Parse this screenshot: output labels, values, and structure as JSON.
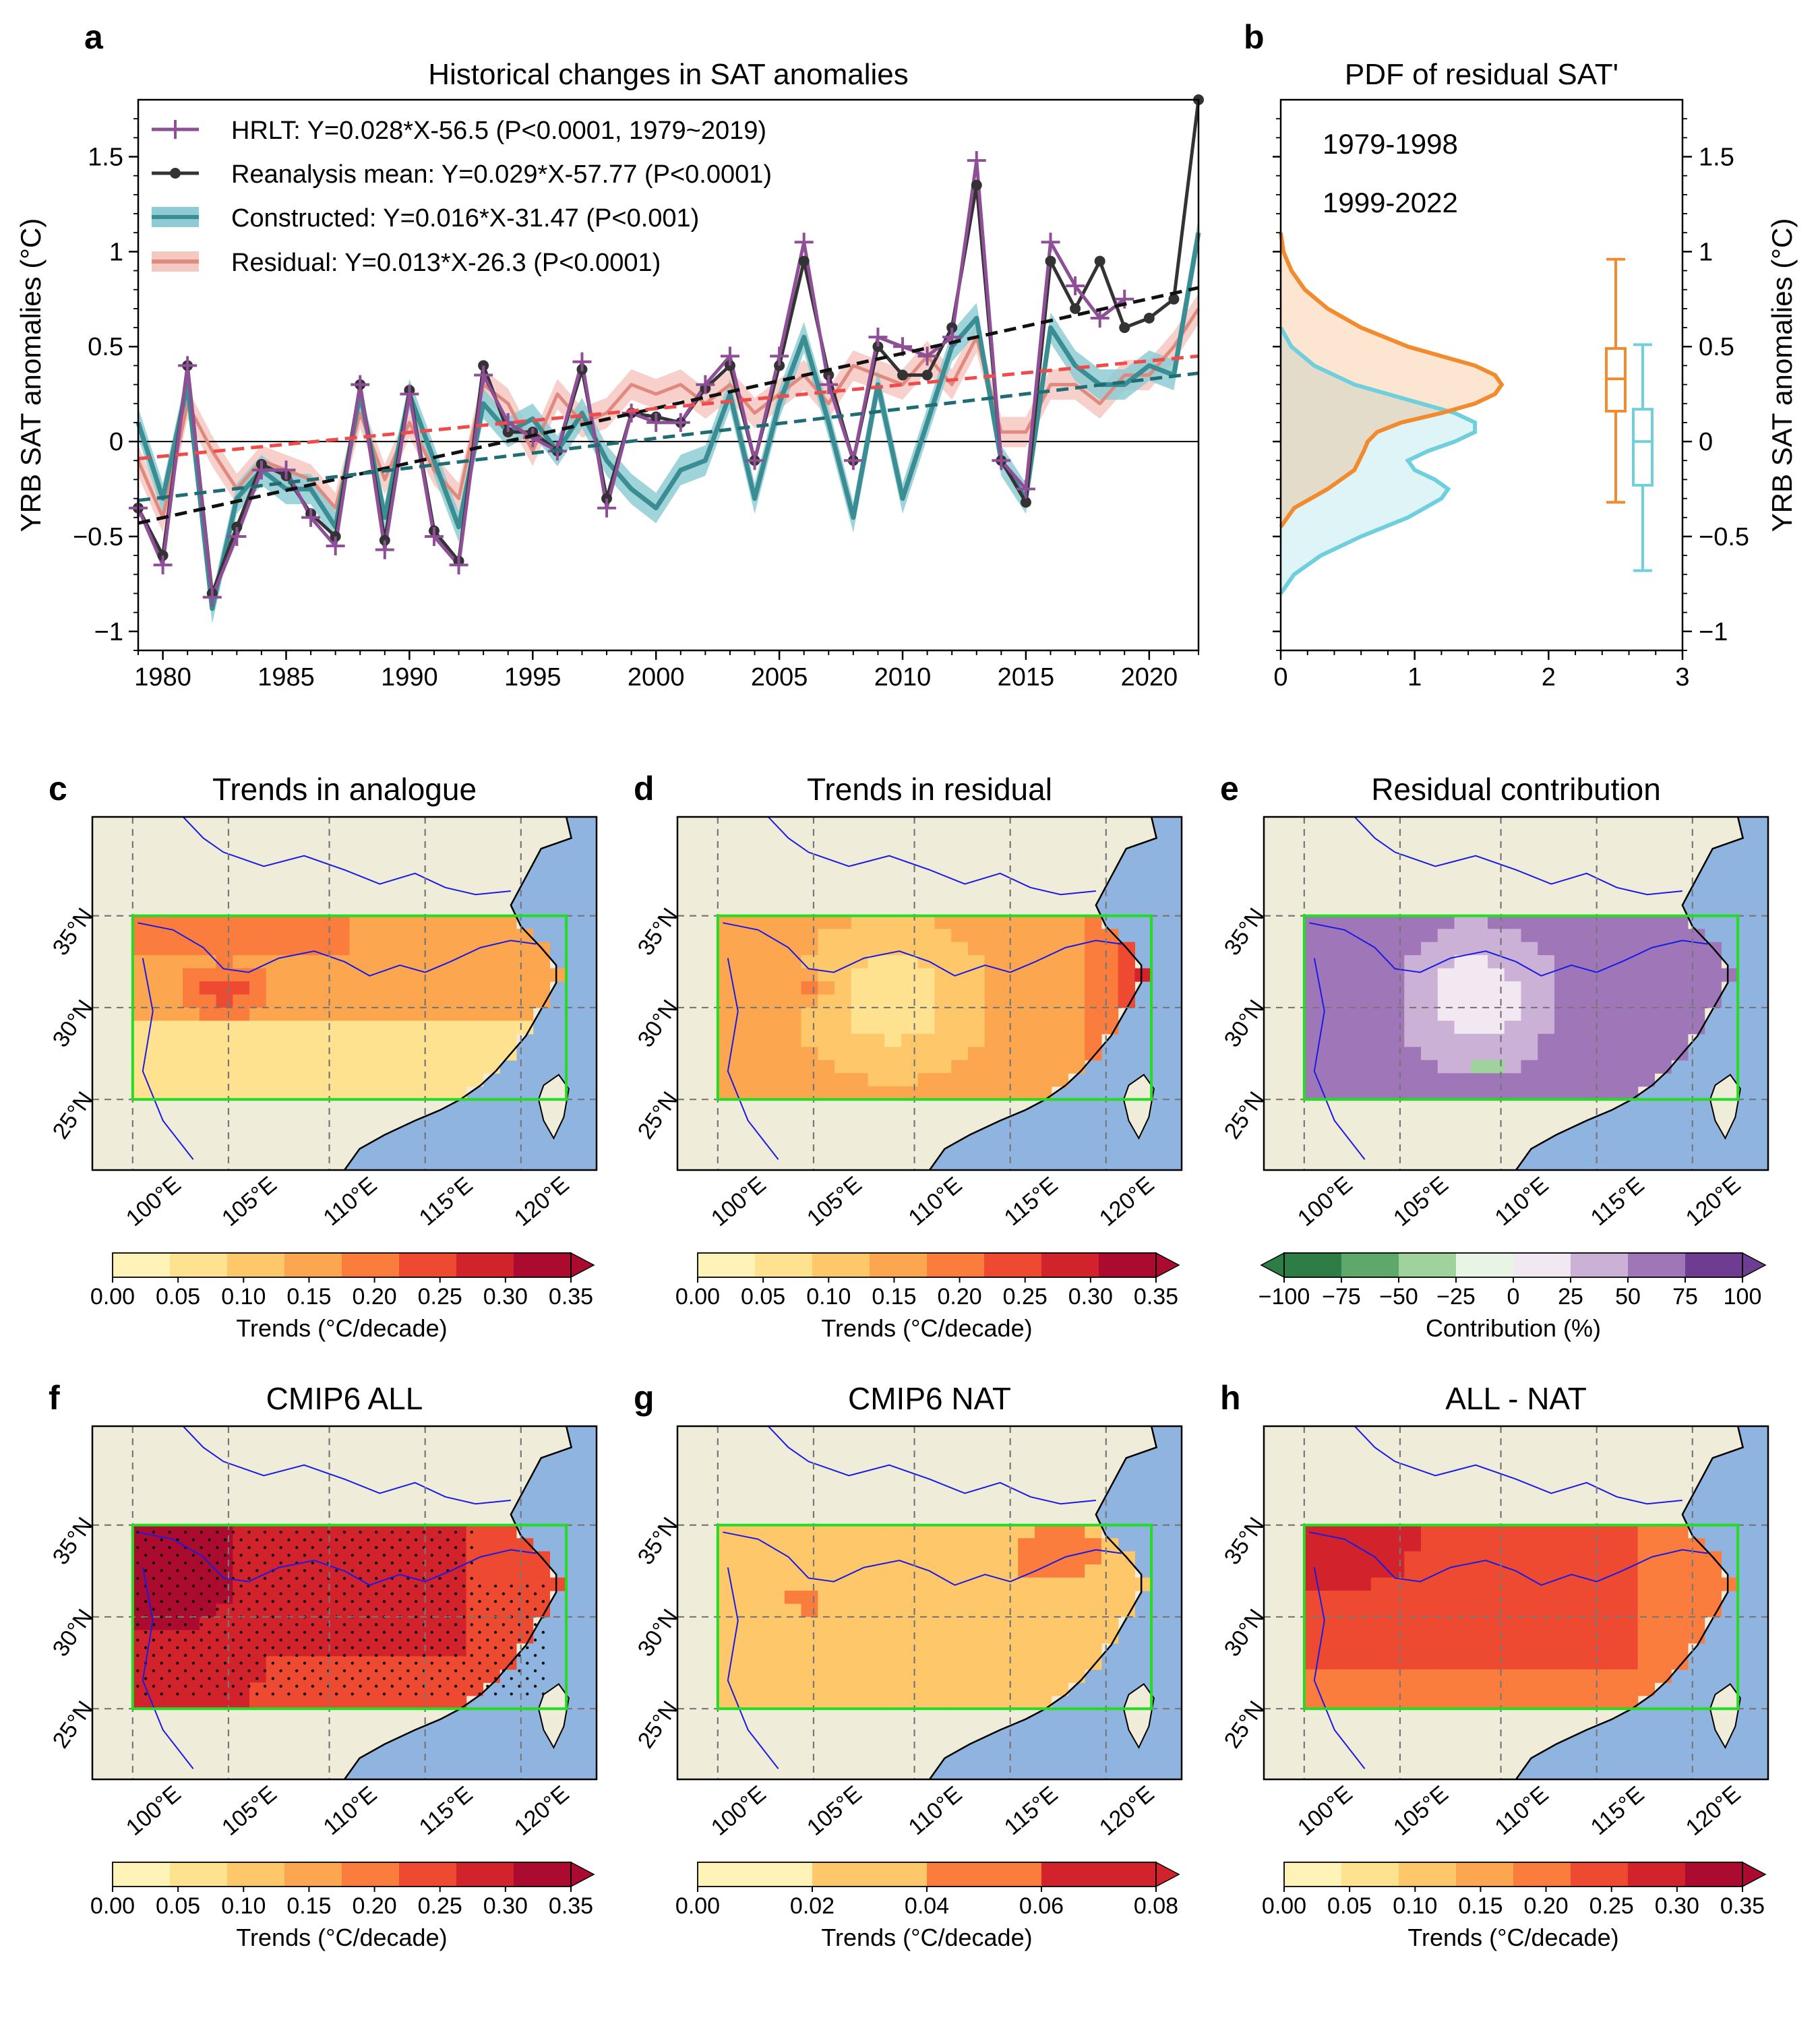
{
  "chart_data": [
    {
      "panel": "a",
      "type": "line",
      "title": "Historical changes in SAT anomalies",
      "ylabel": "YRB SAT anomalies (°C)",
      "xlim": [
        1979,
        2022
      ],
      "ylim": [
        -1.1,
        1.8
      ],
      "xticks": [
        1980,
        1985,
        1990,
        1995,
        2000,
        2005,
        2010,
        2015,
        2020
      ],
      "yticks": [
        -1,
        -0.5,
        0,
        0.5,
        1,
        1.5
      ],
      "ytick_labels": [
        "−1",
        "−0.5",
        "0",
        "0.5",
        "1",
        "1.5"
      ],
      "legend_position": "top-left",
      "series": [
        {
          "name": "HRLT: Y=0.028*X-56.5 (P<0.0001, 1979~2019)",
          "color": "#8f4f97",
          "marker": "plus",
          "x": [
            1979,
            1980,
            1981,
            1982,
            1983,
            1984,
            1985,
            1986,
            1987,
            1988,
            1989,
            1990,
            1991,
            1992,
            1993,
            1994,
            1995,
            1996,
            1997,
            1998,
            1999,
            2000,
            2001,
            2002,
            2003,
            2004,
            2005,
            2006,
            2007,
            2008,
            2009,
            2010,
            2011,
            2012,
            2013,
            2014,
            2015,
            2016,
            2017,
            2018,
            2019
          ],
          "values": [
            -0.35,
            -0.65,
            0.4,
            -0.82,
            -0.5,
            -0.15,
            -0.15,
            -0.4,
            -0.55,
            0.3,
            -0.57,
            0.25,
            -0.5,
            -0.65,
            0.35,
            0.1,
            0.02,
            -0.05,
            0.42,
            -0.35,
            0.15,
            0.1,
            0.1,
            0.3,
            0.45,
            -0.1,
            0.45,
            1.05,
            0.3,
            -0.1,
            0.55,
            0.5,
            0.45,
            0.55,
            1.48,
            -0.1,
            -0.25,
            1.05,
            0.82,
            0.65,
            0.75
          ]
        },
        {
          "name": "Reanalysis mean: Y=0.029*X-57.77 (P<0.0001)",
          "color": "#333333",
          "marker": "dot",
          "x": [
            1979,
            1980,
            1981,
            1982,
            1983,
            1984,
            1985,
            1986,
            1987,
            1988,
            1989,
            1990,
            1991,
            1992,
            1993,
            1994,
            1995,
            1996,
            1997,
            1998,
            1999,
            2000,
            2001,
            2002,
            2003,
            2004,
            2005,
            2006,
            2007,
            2008,
            2009,
            2010,
            2011,
            2012,
            2013,
            2014,
            2015,
            2016,
            2017,
            2018,
            2019,
            2020,
            2021,
            2022
          ],
          "values": [
            -0.35,
            -0.6,
            0.4,
            -0.8,
            -0.45,
            -0.12,
            -0.18,
            -0.38,
            -0.5,
            0.3,
            -0.52,
            0.27,
            -0.47,
            -0.63,
            0.4,
            0.05,
            0.05,
            -0.05,
            0.38,
            -0.3,
            0.15,
            0.13,
            0.1,
            0.28,
            0.4,
            -0.1,
            0.4,
            0.95,
            0.35,
            -0.1,
            0.5,
            0.35,
            0.35,
            0.6,
            1.35,
            -0.1,
            -0.32,
            0.95,
            0.7,
            0.95,
            0.6,
            0.65,
            0.75,
            1.8
          ]
        },
        {
          "name": "Constructed: Y=0.016*X-31.47 (P<0.001)",
          "color": "#3a8d93",
          "band_color": "#8dccd4",
          "x": [
            1979,
            1980,
            1981,
            1982,
            1983,
            1984,
            1985,
            1986,
            1987,
            1988,
            1989,
            1990,
            1991,
            1992,
            1993,
            1994,
            1995,
            1996,
            1997,
            1998,
            1999,
            2000,
            2001,
            2002,
            2003,
            2004,
            2005,
            2006,
            2007,
            2008,
            2009,
            2010,
            2011,
            2012,
            2013,
            2014,
            2015,
            2016,
            2017,
            2018,
            2019,
            2020,
            2021,
            2022
          ],
          "values": [
            0.1,
            -0.3,
            0.3,
            -0.88,
            -0.3,
            -0.15,
            -0.25,
            -0.25,
            -0.45,
            0.25,
            -0.4,
            0.25,
            -0.1,
            -0.45,
            0.2,
            0.05,
            0.12,
            -0.05,
            0.15,
            -0.1,
            -0.25,
            -0.35,
            -0.15,
            -0.1,
            0.25,
            -0.3,
            0.2,
            0.55,
            0.1,
            -0.4,
            0.3,
            -0.3,
            0.1,
            0.5,
            0.65,
            -0.1,
            -0.3,
            0.6,
            0.4,
            0.3,
            0.3,
            0.4,
            0.35,
            1.1
          ]
        },
        {
          "name": "Residual: Y=0.013*X-26.3 (P<0.0001)",
          "color": "#e08a7f",
          "band_color": "#f6c8c2",
          "x": [
            1979,
            1980,
            1981,
            1982,
            1983,
            1984,
            1985,
            1986,
            1987,
            1988,
            1989,
            1990,
            1991,
            1992,
            1993,
            1994,
            1995,
            1996,
            1997,
            1998,
            1999,
            2000,
            2001,
            2002,
            2003,
            2004,
            2005,
            2006,
            2007,
            2008,
            2009,
            2010,
            2011,
            2012,
            2013,
            2014,
            2015,
            2016,
            2017,
            2018,
            2019,
            2020,
            2021,
            2022
          ],
          "values": [
            -0.1,
            -0.4,
            0.2,
            -0.05,
            -0.25,
            -0.1,
            -0.15,
            -0.2,
            -0.35,
            0.15,
            -0.2,
            0.1,
            -0.15,
            -0.3,
            0.3,
            0.2,
            -0.05,
            0.25,
            0.1,
            0.15,
            0.3,
            0.25,
            0.3,
            0.2,
            0.3,
            0.15,
            0.25,
            0.35,
            0.2,
            0.4,
            0.35,
            0.3,
            0.45,
            0.3,
            0.55,
            0.05,
            0.05,
            0.3,
            0.3,
            0.2,
            0.35,
            0.35,
            0.5,
            0.7
          ]
        }
      ],
      "trend_lines": [
        {
          "color": "#111111",
          "from": [
            1979,
            -0.43
          ],
          "to": [
            2022,
            0.81
          ]
        },
        {
          "color": "#ef4b4b",
          "from": [
            1979,
            -0.09
          ],
          "to": [
            2022,
            0.45
          ]
        },
        {
          "color": "#1f6d72",
          "from": [
            1979,
            -0.31
          ],
          "to": [
            2022,
            0.36
          ]
        }
      ],
      "zero_line": 0
    },
    {
      "panel": "b",
      "type": "area",
      "title": "PDF of residual SAT'",
      "ylabel": "YRB SAT anomalies (°C)",
      "xlim": [
        0,
        3
      ],
      "xticks": [
        0,
        1,
        2,
        3
      ],
      "ylim": [
        -1.1,
        1.8
      ],
      "series": [
        {
          "name": "1979-1998",
          "color": "#6fcfdc",
          "pdf_y": [
            -0.8,
            -0.7,
            -0.6,
            -0.5,
            -0.4,
            -0.3,
            -0.25,
            -0.2,
            -0.15,
            -0.1,
            -0.05,
            0,
            0.05,
            0.1,
            0.15,
            0.2,
            0.3,
            0.4,
            0.5,
            0.6
          ],
          "pdf_density": [
            0.0,
            0.1,
            0.3,
            0.6,
            0.95,
            1.2,
            1.25,
            1.15,
            1.0,
            0.95,
            1.1,
            1.3,
            1.45,
            1.45,
            1.3,
            1.05,
            0.55,
            0.25,
            0.08,
            0.0
          ],
          "box": {
            "whisker_low": -0.68,
            "q1": -0.23,
            "median": 0.0,
            "q3": 0.17,
            "whisker_high": 0.51
          }
        },
        {
          "name": "1999-2022",
          "color": "#f28a2e",
          "pdf_y": [
            -0.45,
            -0.35,
            -0.25,
            -0.15,
            -0.05,
            0.0,
            0.05,
            0.1,
            0.15,
            0.2,
            0.25,
            0.3,
            0.35,
            0.4,
            0.45,
            0.5,
            0.6,
            0.7,
            0.8,
            0.9,
            1.0,
            1.1
          ],
          "pdf_density": [
            0.0,
            0.1,
            0.35,
            0.55,
            0.62,
            0.65,
            0.72,
            0.9,
            1.2,
            1.45,
            1.6,
            1.65,
            1.6,
            1.45,
            1.2,
            0.95,
            0.6,
            0.35,
            0.18,
            0.08,
            0.02,
            0.0
          ],
          "box": {
            "whisker_low": -0.32,
            "q1": 0.16,
            "median": 0.33,
            "q3": 0.49,
            "whisker_high": 0.96
          }
        }
      ]
    }
  ],
  "maps": {
    "lon_labels": [
      "100°E",
      "105°E",
      "110°E",
      "115°E",
      "120°E"
    ],
    "lat_labels": [
      "35°N",
      "30°N",
      "25°N"
    ],
    "panels": [
      {
        "letter": "c",
        "title": "Trends in analogue",
        "cbar_label": "Trends (°C/decade)",
        "cbar_ticks": [
          "0.00",
          "0.05",
          "0.10",
          "0.15",
          "0.20",
          "0.25",
          "0.30",
          "0.35"
        ],
        "cbar_colors": [
          "#fff3b8",
          "#fee28f",
          "#fdc76a",
          "#fca64f",
          "#fb7d3e",
          "#ee4a32",
          "#d2222c",
          "#ab0b2e"
        ],
        "scheme": "analogue",
        "extend": "max",
        "stippled": false
      },
      {
        "letter": "d",
        "title": "Trends in residual",
        "cbar_label": "Trends (°C/decade)",
        "cbar_ticks": [
          "0.00",
          "0.05",
          "0.10",
          "0.15",
          "0.20",
          "0.25",
          "0.30",
          "0.35"
        ],
        "cbar_colors": [
          "#fff3b8",
          "#fee28f",
          "#fdc76a",
          "#fca64f",
          "#fb7d3e",
          "#ee4a32",
          "#d2222c",
          "#ab0b2e"
        ],
        "scheme": "residual",
        "extend": "max",
        "stippled": false
      },
      {
        "letter": "e",
        "title": "Residual contribution",
        "cbar_label": "Contribution (%)",
        "cbar_ticks": [
          "−100",
          "−75",
          "−50",
          "−25",
          "0",
          "25",
          "50",
          "75",
          "100"
        ],
        "cbar_colors": [
          "#2e7d47",
          "#5da86a",
          "#9fd39b",
          "#e8f4e4",
          "#f1e8f2",
          "#cbb1d6",
          "#9f77b8",
          "#6e3d92"
        ],
        "scheme": "contribution",
        "extend": "both",
        "stippled": false
      },
      {
        "letter": "f",
        "title": "CMIP6 ALL",
        "cbar_label": "Trends (°C/decade)",
        "cbar_ticks": [
          "0.00",
          "0.05",
          "0.10",
          "0.15",
          "0.20",
          "0.25",
          "0.30",
          "0.35"
        ],
        "cbar_colors": [
          "#fff3b8",
          "#fee28f",
          "#fdc76a",
          "#fca64f",
          "#fb7d3e",
          "#ee4a32",
          "#d2222c",
          "#ab0b2e"
        ],
        "scheme": "all",
        "extend": "max",
        "stippled": true
      },
      {
        "letter": "g",
        "title": "CMIP6 NAT",
        "cbar_label": "Trends (°C/decade)",
        "cbar_ticks": [
          "0.00",
          "0.02",
          "0.04",
          "0.06",
          "0.08"
        ],
        "cbar_colors": [
          "#fff3b8",
          "#fdc76a",
          "#fb7d3e",
          "#d2222c"
        ],
        "scheme": "nat",
        "extend": "max",
        "stippled": false
      },
      {
        "letter": "h",
        "title": "ALL - NAT",
        "cbar_label": "Trends (°C/decade)",
        "cbar_ticks": [
          "0.00",
          "0.05",
          "0.10",
          "0.15",
          "0.20",
          "0.25",
          "0.30",
          "0.35"
        ],
        "cbar_colors": [
          "#fff3b8",
          "#fee28f",
          "#fdc76a",
          "#fca64f",
          "#fb7d3e",
          "#ee4a32",
          "#d2222c",
          "#ab0b2e"
        ],
        "scheme": "allnat",
        "extend": "max",
        "stippled": false
      }
    ]
  },
  "colors": {
    "land": "#efecd9",
    "ocean": "#8fb4e0",
    "box": "#22dd22",
    "river": "#1a1ae6"
  }
}
